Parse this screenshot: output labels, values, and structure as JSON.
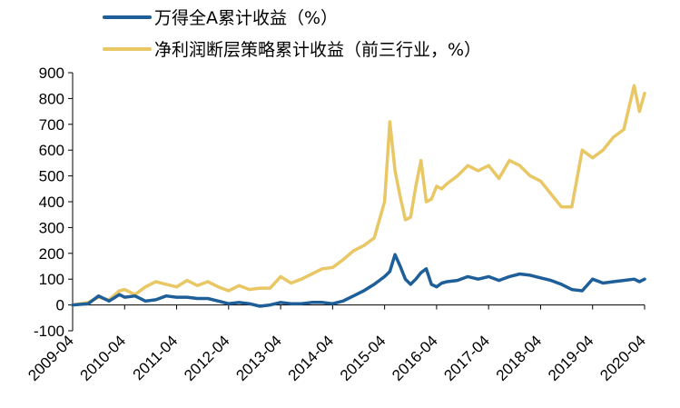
{
  "chart_data": {
    "type": "line",
    "title": "",
    "xlabel": "",
    "ylabel": "",
    "ylim": [
      -100,
      900
    ],
    "yticks": [
      -100,
      0,
      100,
      200,
      300,
      400,
      500,
      600,
      700,
      800,
      900
    ],
    "x_start": "2009-04",
    "x_end": "2020-04",
    "xticks": [
      "2009-04",
      "2010-04",
      "2011-04",
      "2012-04",
      "2013-04",
      "2014-04",
      "2015-04",
      "2016-04",
      "2017-04",
      "2018-04",
      "2019-04",
      "2020-04"
    ],
    "grid": false,
    "legend_position": "top-left",
    "series": [
      {
        "name": "万得全A累计收益（%）",
        "color": "#1f5f99",
        "x": [
          0,
          0.3,
          0.5,
          0.7,
          0.9,
          1.0,
          1.2,
          1.4,
          1.6,
          1.8,
          2.0,
          2.2,
          2.4,
          2.6,
          2.8,
          3.0,
          3.2,
          3.4,
          3.6,
          3.8,
          4.0,
          4.2,
          4.4,
          4.6,
          4.8,
          5.0,
          5.2,
          5.4,
          5.6,
          5.8,
          6.0,
          6.1,
          6.2,
          6.3,
          6.4,
          6.5,
          6.6,
          6.7,
          6.8,
          6.9,
          7.0,
          7.1,
          7.2,
          7.4,
          7.6,
          7.8,
          8.0,
          8.2,
          8.4,
          8.6,
          8.8,
          9.0,
          9.2,
          9.4,
          9.6,
          9.8,
          10.0,
          10.2,
          10.4,
          10.6,
          10.8,
          10.9,
          11.0
        ],
        "y": [
          0,
          5,
          35,
          15,
          40,
          30,
          35,
          15,
          20,
          35,
          30,
          30,
          25,
          25,
          15,
          5,
          10,
          5,
          -5,
          0,
          10,
          5,
          5,
          10,
          10,
          5,
          15,
          35,
          55,
          80,
          110,
          130,
          195,
          150,
          100,
          80,
          100,
          125,
          140,
          80,
          70,
          85,
          90,
          95,
          110,
          100,
          110,
          95,
          110,
          120,
          115,
          105,
          95,
          80,
          60,
          55,
          100,
          85,
          90,
          95,
          100,
          90,
          100
        ],
        "unit": "%"
      },
      {
        "name": "净利润断层策略累计收益（前三行业，%）",
        "color": "#e8c764",
        "x": [
          0,
          0.3,
          0.5,
          0.7,
          0.9,
          1.0,
          1.2,
          1.4,
          1.6,
          1.8,
          2.0,
          2.2,
          2.4,
          2.6,
          2.8,
          3.0,
          3.2,
          3.4,
          3.6,
          3.8,
          4.0,
          4.2,
          4.4,
          4.6,
          4.8,
          5.0,
          5.2,
          5.4,
          5.6,
          5.8,
          6.0,
          6.1,
          6.2,
          6.3,
          6.4,
          6.5,
          6.6,
          6.7,
          6.8,
          6.9,
          7.0,
          7.1,
          7.2,
          7.4,
          7.6,
          7.8,
          8.0,
          8.2,
          8.4,
          8.6,
          8.8,
          9.0,
          9.2,
          9.4,
          9.6,
          9.8,
          10.0,
          10.2,
          10.4,
          10.6,
          10.8,
          10.9,
          11.0
        ],
        "y": [
          0,
          10,
          30,
          20,
          55,
          60,
          40,
          70,
          90,
          80,
          70,
          95,
          75,
          90,
          70,
          55,
          75,
          60,
          65,
          65,
          110,
          85,
          100,
          120,
          140,
          145,
          175,
          210,
          230,
          260,
          400,
          710,
          520,
          420,
          330,
          340,
          460,
          560,
          400,
          410,
          460,
          450,
          470,
          500,
          540,
          520,
          540,
          490,
          560,
          540,
          500,
          480,
          430,
          380,
          380,
          600,
          570,
          600,
          650,
          680,
          850,
          750,
          820
        ],
        "unit": "%"
      }
    ]
  }
}
